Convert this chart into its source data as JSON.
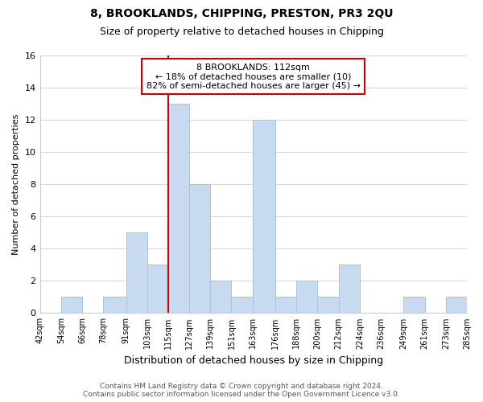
{
  "title": "8, BROOKLANDS, CHIPPING, PRESTON, PR3 2QU",
  "subtitle": "Size of property relative to detached houses in Chipping",
  "xlabel": "Distribution of detached houses by size in Chipping",
  "ylabel": "Number of detached properties",
  "bin_edges": [
    42,
    54,
    66,
    78,
    91,
    103,
    115,
    127,
    139,
    151,
    163,
    176,
    188,
    200,
    212,
    224,
    236,
    249,
    261,
    273,
    285
  ],
  "bin_counts": [
    0,
    1,
    0,
    1,
    5,
    3,
    13,
    8,
    2,
    1,
    12,
    1,
    2,
    1,
    3,
    0,
    0,
    1,
    0,
    1
  ],
  "bar_color": "#c8daef",
  "bar_edge_color": "#a8c4e0",
  "vline_x": 115,
  "vline_color": "#cc0000",
  "annotation_text": "8 BROOKLANDS: 112sqm\n← 18% of detached houses are smaller (10)\n82% of semi-detached houses are larger (45) →",
  "annotation_box_color": "#ffffff",
  "annotation_box_edge": "#cc0000",
  "ylim": [
    0,
    16
  ],
  "yticks": [
    0,
    2,
    4,
    6,
    8,
    10,
    12,
    14,
    16
  ],
  "tick_labels": [
    "42sqm",
    "54sqm",
    "66sqm",
    "78sqm",
    "91sqm",
    "103sqm",
    "115sqm",
    "127sqm",
    "139sqm",
    "151sqm",
    "163sqm",
    "176sqm",
    "188sqm",
    "200sqm",
    "212sqm",
    "224sqm",
    "236sqm",
    "249sqm",
    "261sqm",
    "273sqm",
    "285sqm"
  ],
  "footer_text": "Contains HM Land Registry data © Crown copyright and database right 2024.\nContains public sector information licensed under the Open Government Licence v3.0.",
  "grid_color": "#d8d8d8",
  "background_color": "#ffffff",
  "title_fontsize": 10,
  "subtitle_fontsize": 9,
  "ylabel_fontsize": 8,
  "xlabel_fontsize": 9
}
